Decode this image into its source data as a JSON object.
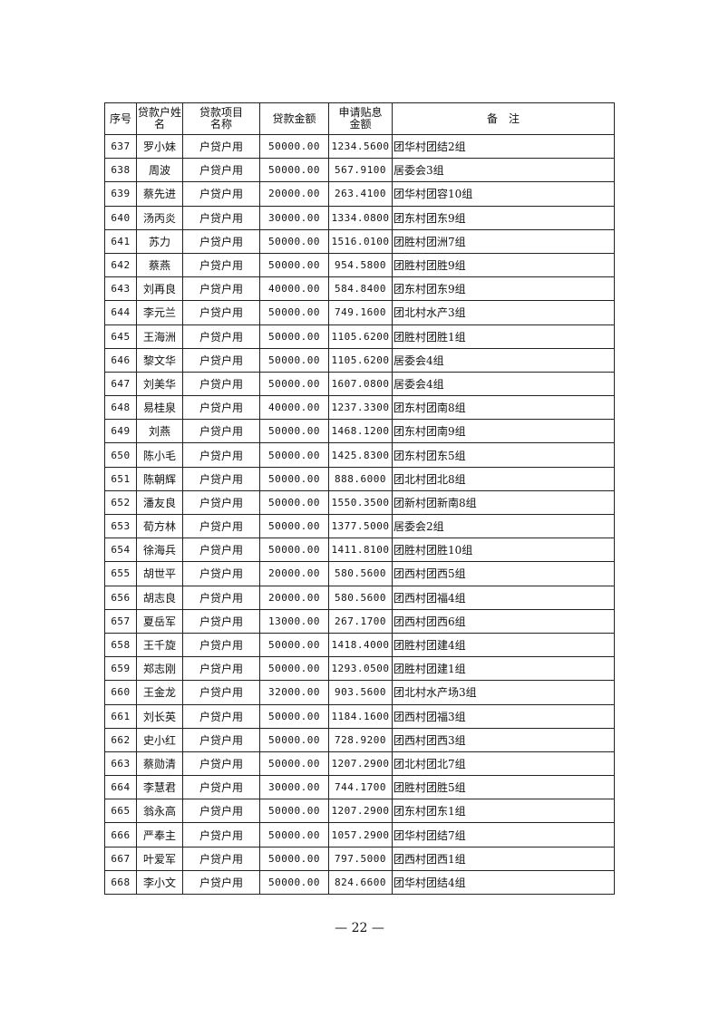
{
  "headers": {
    "seq": "序号",
    "name": "贷款户姓 名",
    "project": "贷款项目名称",
    "amount": "贷款金额",
    "subsidy": "申请贴息金额",
    "remark": "备　注"
  },
  "rows": [
    [
      "637",
      "罗小妹",
      "户贷户用",
      "50000.00",
      "1234.5600",
      "团华村团结2组"
    ],
    [
      "638",
      "周波",
      "户贷户用",
      "50000.00",
      "567.9100",
      "居委会3组"
    ],
    [
      "639",
      "蔡先进",
      "户贷户用",
      "20000.00",
      "263.4100",
      "团华村团容10组"
    ],
    [
      "640",
      "汤丙炎",
      "户贷户用",
      "30000.00",
      "1334.0800",
      "团东村团东9组"
    ],
    [
      "641",
      "苏力",
      "户贷户用",
      "50000.00",
      "1516.0100",
      "团胜村团洲7组"
    ],
    [
      "642",
      "蔡燕",
      "户贷户用",
      "50000.00",
      "954.5800",
      "团胜村团胜9组"
    ],
    [
      "643",
      "刘再良",
      "户贷户用",
      "40000.00",
      "584.8400",
      "团东村团东9组"
    ],
    [
      "644",
      "李元兰",
      "户贷户用",
      "50000.00",
      "749.1600",
      "团北村水产3组"
    ],
    [
      "645",
      "王海洲",
      "户贷户用",
      "50000.00",
      "1105.6200",
      "团胜村团胜1组"
    ],
    [
      "646",
      "黎文华",
      "户贷户用",
      "50000.00",
      "1105.6200",
      "居委会4组"
    ],
    [
      "647",
      "刘美华",
      "户贷户用",
      "50000.00",
      "1607.0800",
      "居委会4组"
    ],
    [
      "648",
      "易桂泉",
      "户贷户用",
      "40000.00",
      "1237.3300",
      "团东村团南8组"
    ],
    [
      "649",
      "刘燕",
      "户贷户用",
      "50000.00",
      "1468.1200",
      "团东村团南9组"
    ],
    [
      "650",
      "陈小毛",
      "户贷户用",
      "50000.00",
      "1425.8300",
      "团东村团东5组"
    ],
    [
      "651",
      "陈朝辉",
      "户贷户用",
      "50000.00",
      "888.6000",
      "团北村团北8组"
    ],
    [
      "652",
      "潘友良",
      "户贷户用",
      "50000.00",
      "1550.3500",
      "团新村团新南8组"
    ],
    [
      "653",
      "荀方林",
      "户贷户用",
      "50000.00",
      "1377.5000",
      "居委会2组"
    ],
    [
      "654",
      "徐海兵",
      "户贷户用",
      "50000.00",
      "1411.8100",
      "团胜村团胜10组"
    ],
    [
      "655",
      "胡世平",
      "户贷户用",
      "20000.00",
      "580.5600",
      "团西村团西5组"
    ],
    [
      "656",
      "胡志良",
      "户贷户用",
      "20000.00",
      "580.5600",
      "团西村团福4组"
    ],
    [
      "657",
      "夏岳军",
      "户贷户用",
      "13000.00",
      "267.1700",
      "团西村团西6组"
    ],
    [
      "658",
      "王千旋",
      "户贷户用",
      "50000.00",
      "1418.4000",
      "团胜村团建4组"
    ],
    [
      "659",
      "郑志刚",
      "户贷户用",
      "50000.00",
      "1293.0500",
      "团胜村团建1组"
    ],
    [
      "660",
      "王金龙",
      "户贷户用",
      "32000.00",
      "903.5600",
      "团北村水产场3组"
    ],
    [
      "661",
      "刘长英",
      "户贷户用",
      "50000.00",
      "1184.1600",
      "团西村团福3组"
    ],
    [
      "662",
      "史小红",
      "户贷户用",
      "50000.00",
      "728.9200",
      "团西村团西3组"
    ],
    [
      "663",
      "蔡勋清",
      "户贷户用",
      "50000.00",
      "1207.2900",
      "团北村团北7组"
    ],
    [
      "664",
      "李慧君",
      "户贷户用",
      "30000.00",
      "744.1700",
      "团胜村团胜5组"
    ],
    [
      "665",
      "翁永高",
      "户贷户用",
      "50000.00",
      "1207.2900",
      "团东村团东1组"
    ],
    [
      "666",
      "严奉主",
      "户贷户用",
      "50000.00",
      "1057.2900",
      "团华村团结7组"
    ],
    [
      "667",
      "叶爱军",
      "户贷户用",
      "50000.00",
      "797.5000",
      "团西村团西1组"
    ],
    [
      "668",
      "李小文",
      "户贷户用",
      "50000.00",
      "824.6600",
      "团华村团结4组"
    ]
  ],
  "page_number": "— 22 —"
}
